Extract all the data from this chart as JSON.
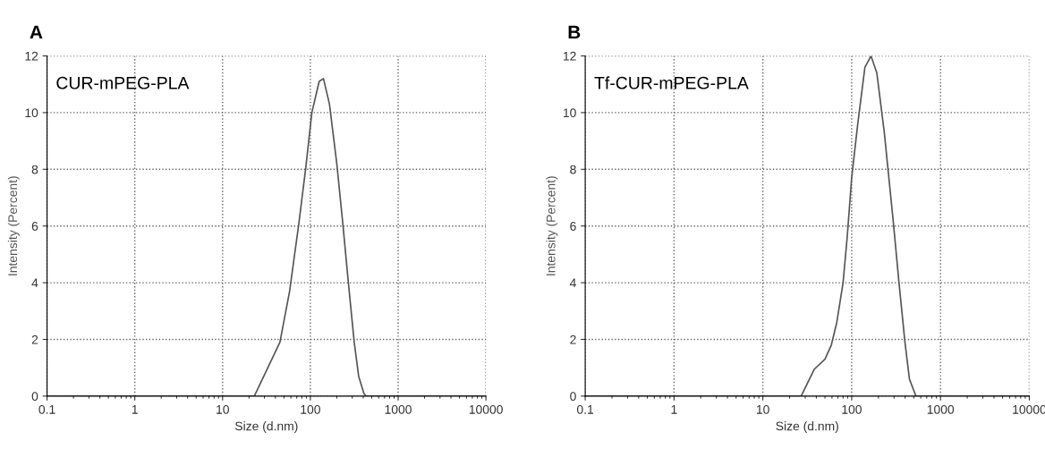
{
  "chart_data": [
    {
      "type": "line",
      "title": "A",
      "xlabel": "Size (d.nm)",
      "ylabel": "Intensity (Percent)",
      "annotations": [
        "CUR-mPEG-PLA"
      ],
      "log": "x",
      "grid": true,
      "marker": "none",
      "line_style": "solid",
      "xlim": [
        0.1,
        10000
      ],
      "xticks": [
        0.1,
        1,
        10,
        100,
        1000,
        10000
      ],
      "ylim": [
        0,
        12
      ],
      "yticks": [
        0,
        2,
        4,
        6,
        8,
        10,
        12
      ],
      "series": [
        {
          "color": "#555555",
          "x": [
            0.1,
            22,
            23,
            45,
            58,
            74,
            89,
            104,
            126,
            141,
            165,
            200,
            234,
            271,
            316,
            355,
            407,
            430,
            10000
          ],
          "values": [
            0,
            0,
            0,
            1.9,
            3.7,
            6.1,
            8.1,
            10,
            11.1,
            11.2,
            10.3,
            8.2,
            6.1,
            4,
            1.9,
            0.7,
            0.1,
            0,
            0
          ]
        }
      ]
    },
    {
      "type": "line",
      "title": "B",
      "xlabel": "Size (d.nm)",
      "ylabel": "Intensity (Percent)",
      "annotations": [
        "Tf-CUR-mPEG-PLA"
      ],
      "log": "x",
      "grid": true,
      "marker": "none",
      "line_style": "solid",
      "xlim": [
        0.1,
        10000
      ],
      "xticks": [
        0.1,
        1,
        10,
        100,
        1000,
        10000
      ],
      "ylim": [
        0,
        12
      ],
      "yticks": [
        0,
        2,
        4,
        6,
        8,
        10,
        12
      ],
      "series": [
        {
          "color": "#555555",
          "x": [
            0.1,
            27,
            28,
            38,
            50,
            59,
            68,
            80,
            89,
            100,
            117,
            141,
            165,
            192,
            233,
            293,
            341,
            398,
            447,
            500,
            530,
            10000
          ],
          "values": [
            0,
            0,
            0.1,
            0.95,
            1.3,
            1.8,
            2.6,
            4,
            5.6,
            7.7,
            9.6,
            11.6,
            12,
            11.4,
            9.3,
            6.2,
            4,
            1.9,
            0.6,
            0.2,
            0,
            0
          ]
        }
      ]
    }
  ]
}
